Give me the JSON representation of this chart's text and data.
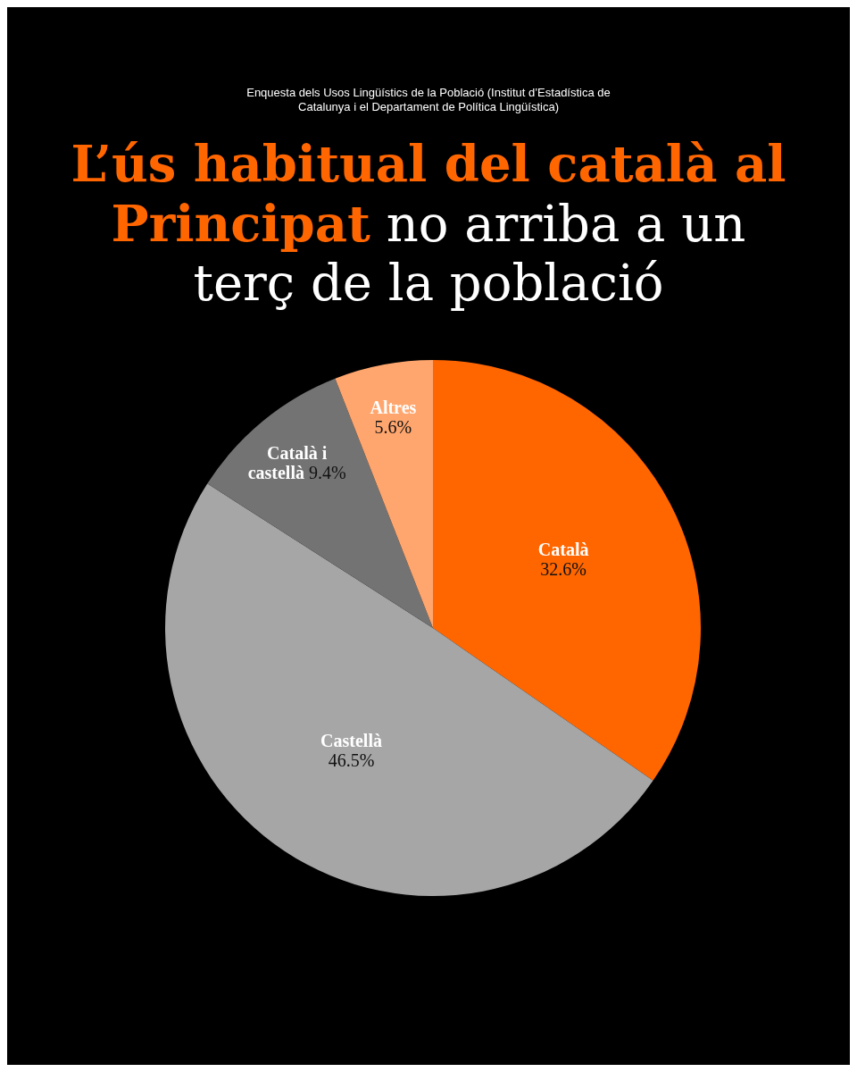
{
  "chart_data": {
    "type": "pie",
    "title": "L’ús habitual del català al Principat",
    "subtitle": "no arriba a un terç de la població",
    "annotations": [
      "Enquesta dels Usos Lingüístics de la Població (Institut d’Estadística de Catalunya i el Departament de Política Lingüística)"
    ],
    "categories": [
      "Català",
      "Castellà",
      "Català i castellà",
      "Altres"
    ],
    "values": [
      32.6,
      46.5,
      9.4,
      5.6
    ],
    "colors": [
      "#ff6600",
      "#a6a6a6",
      "#737373",
      "#ffa66e"
    ],
    "value_labels": [
      "32.6%",
      "46.5%",
      "9.4%",
      "5.6%"
    ],
    "legend": false
  }
}
